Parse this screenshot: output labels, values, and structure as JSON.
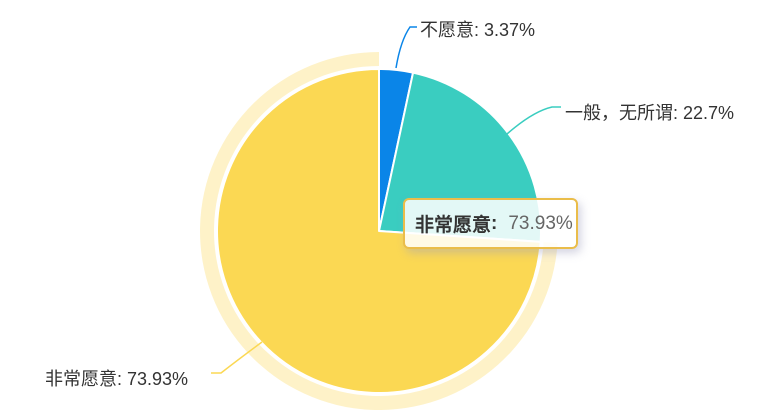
{
  "chart_data": {
    "type": "pie",
    "title": "",
    "series": [
      {
        "name": "不愿意",
        "value": 3.37,
        "color": "#0a85e8"
      },
      {
        "name": "一般，无所谓",
        "value": 22.7,
        "color": "#3acdc0"
      },
      {
        "name": "非常愿意",
        "value": 73.93,
        "color": "#fbd853"
      }
    ],
    "unit": "%",
    "start_angle": 0,
    "clockwise": true,
    "highlighted_slice": "非常愿意",
    "halo_color": "rgba(251,216,83,0.32)",
    "slice_border_color": "#ffffff",
    "legend_position": "none",
    "labels_outside": true
  },
  "callouts": [
    {
      "text": "不愿意: 3.37%"
    },
    {
      "text": "一般，无所谓: 22.7%"
    },
    {
      "text": "非常愿意: 73.93%"
    }
  ],
  "tooltip": {
    "label": "非常愿意",
    "colon": ":",
    "value": "73.93%",
    "border_color": "#eabd4a",
    "text_color": "#333333",
    "value_color": "#666666"
  }
}
